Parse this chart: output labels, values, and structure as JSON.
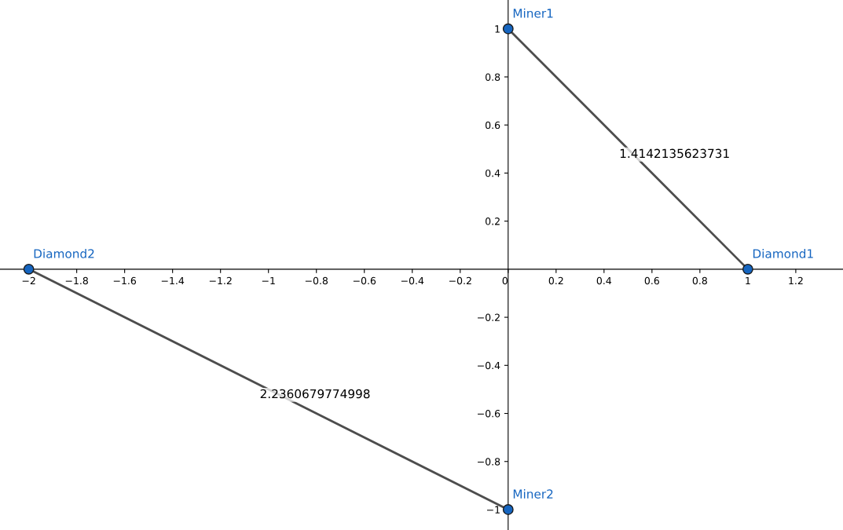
{
  "chart_data": {
    "type": "line",
    "series": [
      {
        "color": "#4d4d4d",
        "x": [
          0,
          1
        ],
        "values": [
          1,
          0
        ]
      },
      {
        "color": "#4d4d4d",
        "x": [
          -2,
          0
        ],
        "values": [
          0,
          -1
        ]
      },
      {
        "type": "scatter",
        "color": "#1565c0",
        "x": [
          0,
          1,
          -2,
          0
        ],
        "values": [
          1,
          0,
          0,
          -1
        ]
      }
    ],
    "xlim": [
      -2.12,
      1.397
    ],
    "ylim": [
      -1.085,
      1.12
    ],
    "xticks": [
      -2,
      -1.8,
      -1.6,
      -1.4,
      -1.2,
      -1,
      -0.8,
      -0.6,
      -0.4,
      -0.2,
      {
        "value": 0,
        "label": "0"
      },
      0.2,
      0.4,
      0.6,
      0.8,
      1,
      1.2
    ],
    "yticks": [
      -1,
      -0.8,
      -0.6,
      -0.4,
      -0.2,
      0.2,
      0.4,
      0.6,
      0.8,
      1
    ],
    "grid": false,
    "legend": false,
    "annotations": [
      {
        "text": "Miner1",
        "x": 0,
        "y": 1
      },
      {
        "text": "Diamond1",
        "x": 1,
        "y": 0
      },
      {
        "text": "Diamond2",
        "x": -2,
        "y": 0
      },
      {
        "text": "Miner2",
        "x": 0,
        "y": -1
      },
      {
        "text": "1.4142135623731",
        "x": 0.5,
        "y": 0.5
      },
      {
        "text": "2.2360679774998",
        "x": -1,
        "y": -0.5
      }
    ]
  }
}
